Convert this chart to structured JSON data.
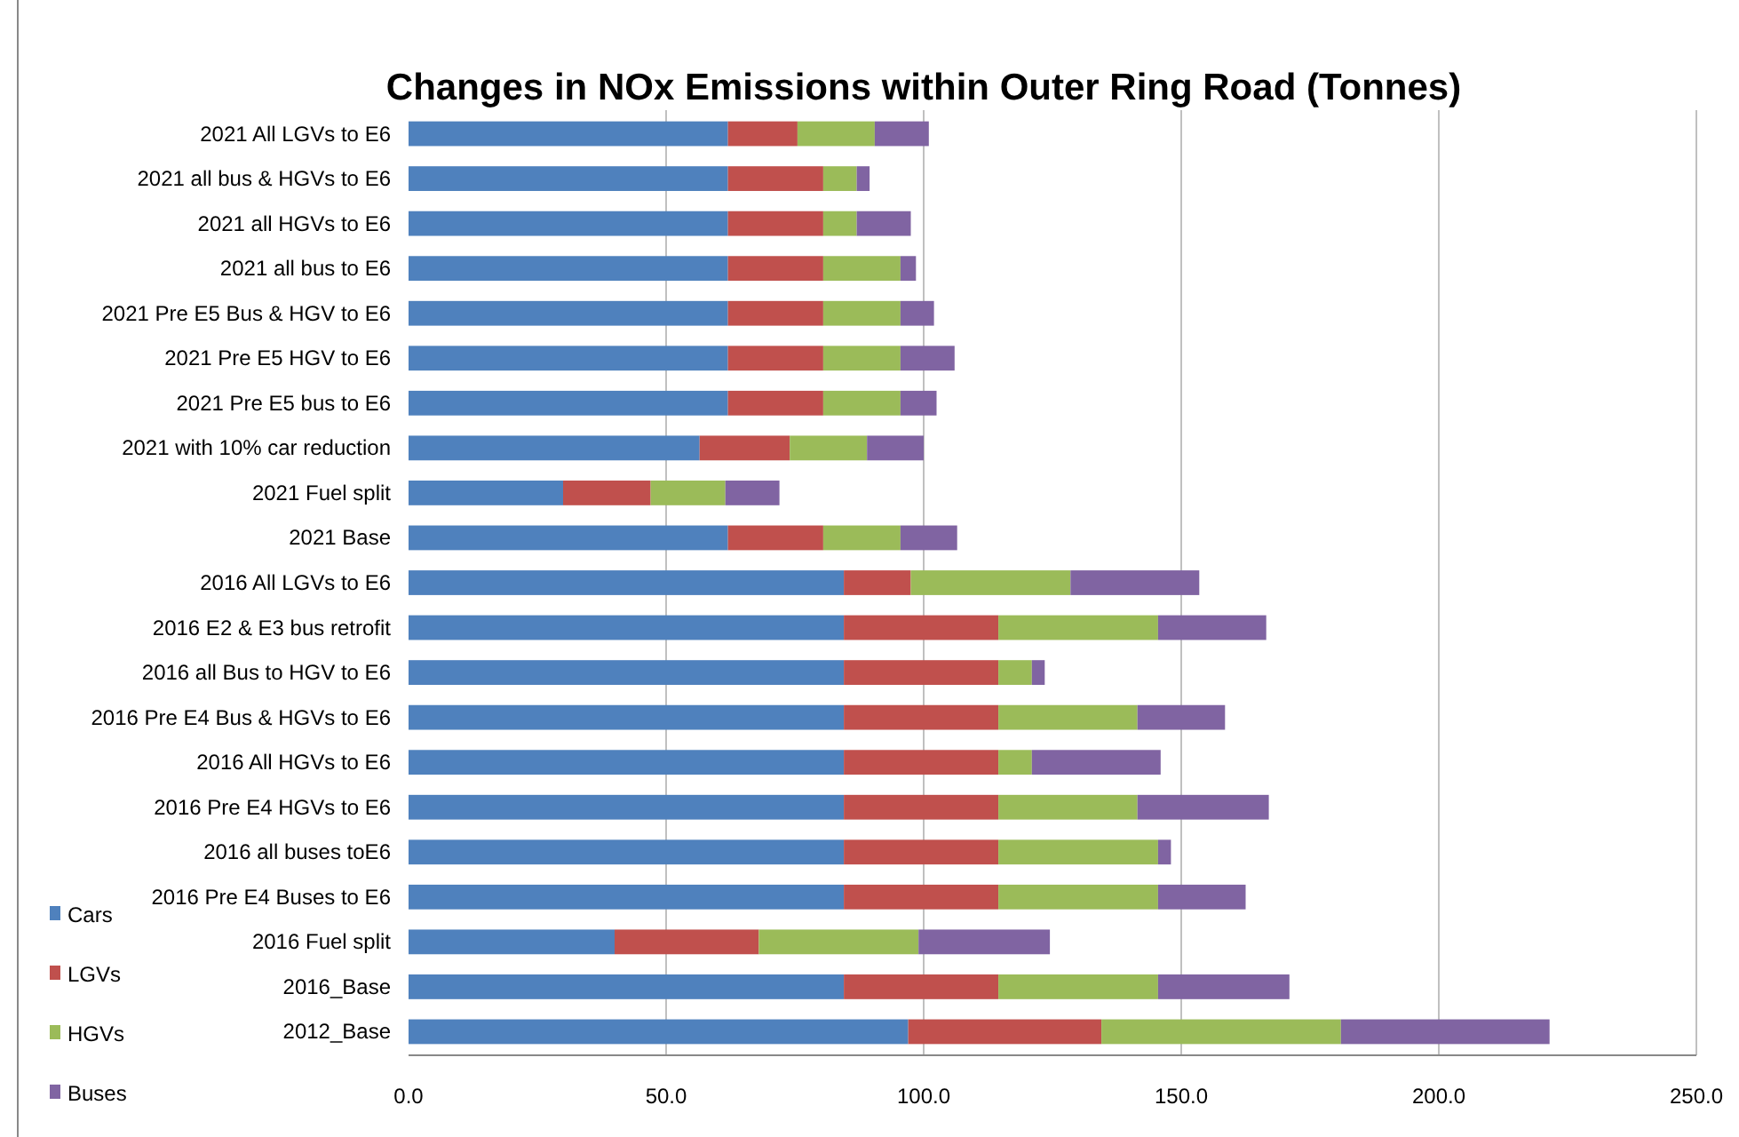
{
  "chart_data": {
    "type": "bar",
    "orientation": "horizontal",
    "stacked": true,
    "title": "Changes in NOx Emissions within Outer Ring Road (Tonnes)",
    "categories": [
      "2021 All LGVs to E6",
      "2021 all bus & HGVs to E6",
      "2021 all HGVs to E6",
      "2021 all bus to E6",
      "2021 Pre E5 Bus & HGV to E6",
      "2021 Pre E5 HGV to E6",
      "2021 Pre E5 bus to E6",
      "2021 with 10% car reduction",
      "2021 Fuel split",
      "2021 Base",
      "2016 All LGVs to E6",
      "2016 E2 & E3 bus retrofit",
      "2016 all Bus to HGV to E6",
      "2016 Pre E4 Bus & HGVs to E6",
      "2016 All HGVs to E6",
      "2016 Pre E4 HGVs to E6",
      "2016 all buses toE6",
      "2016 Pre E4 Buses to E6",
      "2016 Fuel split",
      "2016_Base",
      "2012_Base"
    ],
    "series": [
      {
        "name": "Cars",
        "color": "#4f81bd",
        "values": [
          62,
          62,
          62,
          62,
          62,
          62,
          62,
          56.5,
          30,
          62,
          84.5,
          84.5,
          84.5,
          84.5,
          84.5,
          84.5,
          84.5,
          84.5,
          40,
          84.5,
          97
        ]
      },
      {
        "name": "LGVs",
        "color": "#c0504d",
        "values": [
          13.5,
          18.5,
          18.5,
          18.5,
          18.5,
          18.5,
          18.5,
          17.5,
          17,
          18.5,
          13,
          30,
          30,
          30,
          30,
          30,
          30,
          30,
          28,
          30,
          37.5
        ]
      },
      {
        "name": "HGVs",
        "color": "#9bbb59",
        "values": [
          15,
          6.5,
          6.5,
          15,
          15,
          15,
          15,
          15,
          14.5,
          15,
          31,
          31,
          6.5,
          27,
          6.5,
          27,
          31,
          31,
          31,
          31,
          46.5
        ]
      },
      {
        "name": "Buses",
        "color": "#8064a2",
        "values": [
          10.5,
          2.5,
          10.5,
          3,
          6.5,
          10.5,
          7,
          11,
          10.5,
          11,
          25,
          21,
          2.5,
          17,
          25,
          25.5,
          2.5,
          17,
          25.5,
          25.5,
          40.5
        ]
      }
    ],
    "xlim": [
      0,
      250
    ],
    "xticks": [
      {
        "value": 0,
        "label": "0.0"
      },
      {
        "value": 50,
        "label": "50.0"
      },
      {
        "value": 100,
        "label": "100.0"
      },
      {
        "value": 150,
        "label": "150.0"
      },
      {
        "value": 200,
        "label": "200.0"
      },
      {
        "value": 250,
        "label": "250.0"
      }
    ],
    "grid": "x",
    "legend": "bottom left"
  }
}
